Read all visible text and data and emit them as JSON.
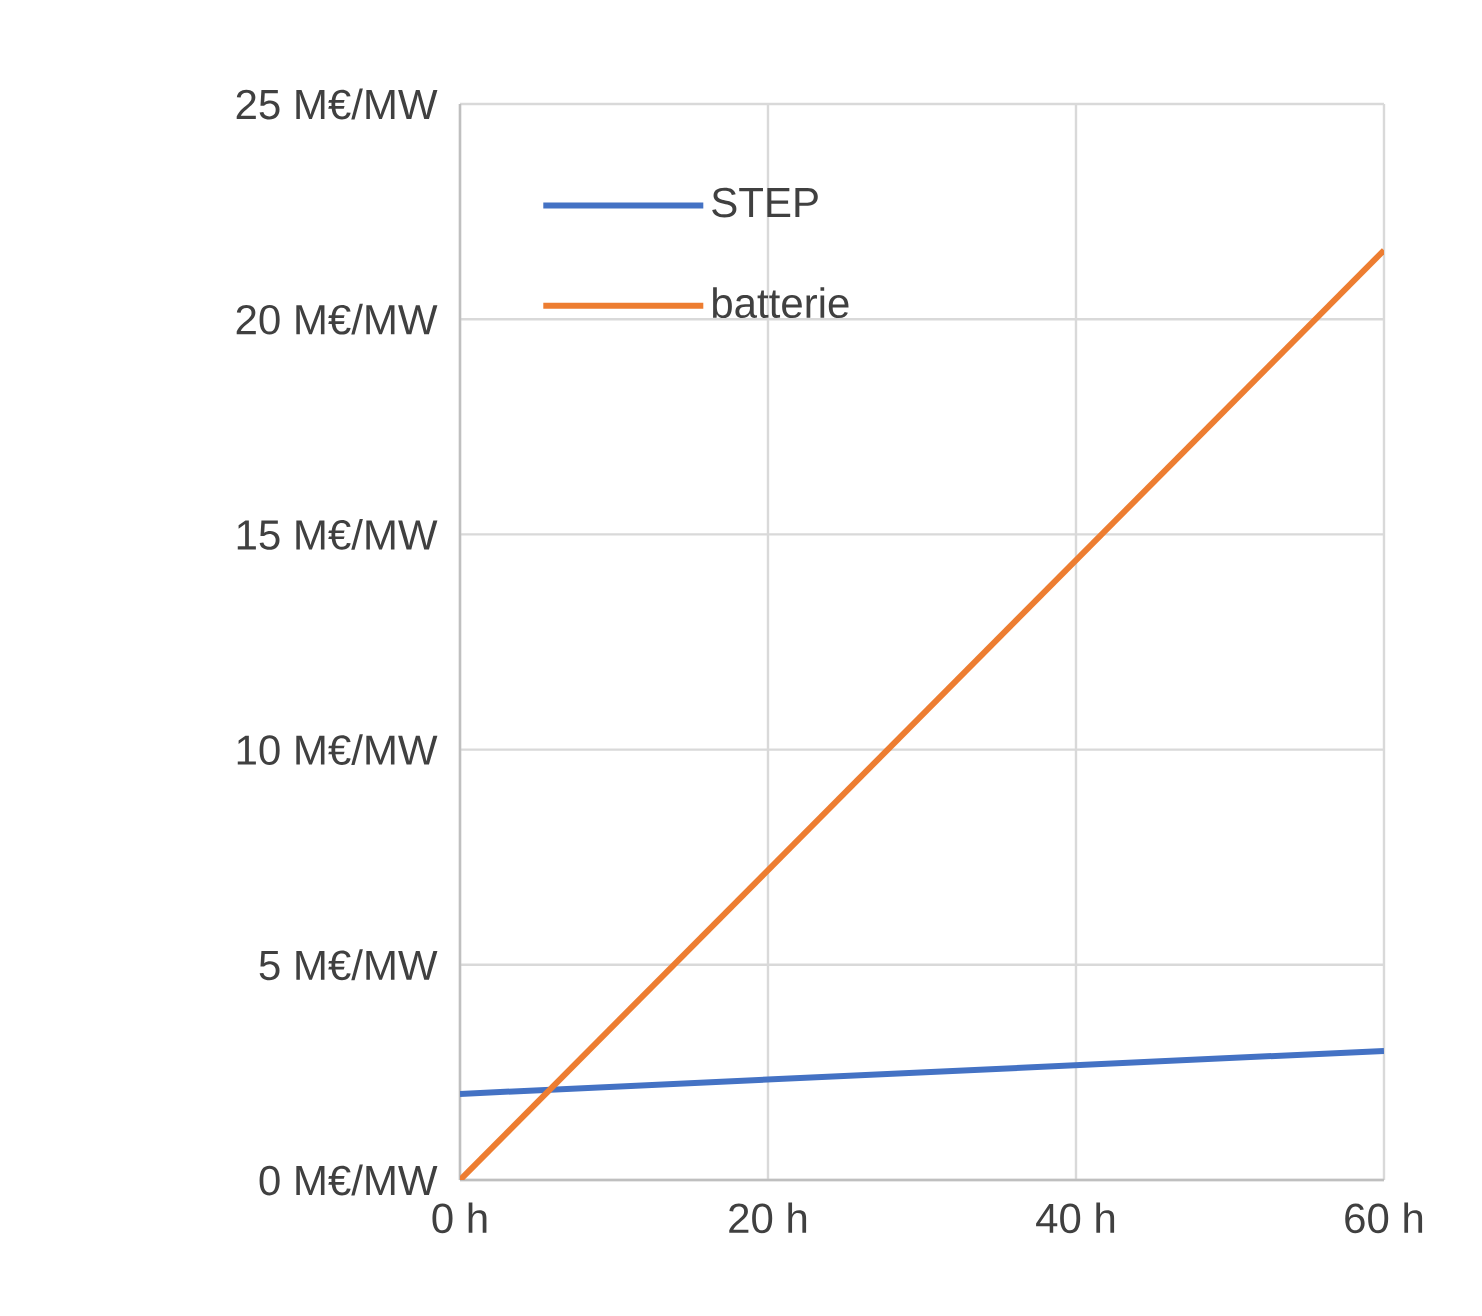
{
  "chart_data": {
    "type": "line",
    "x": [
      0,
      60
    ],
    "series": [
      {
        "name": "STEP",
        "color": "#4472c4",
        "values": [
          2,
          3
        ]
      },
      {
        "name": "batterie",
        "color": "#ed7d31",
        "values": [
          0,
          21.6
        ]
      }
    ],
    "xlim": [
      0,
      60
    ],
    "xticks": [
      {
        "value": 0,
        "label": "0 h"
      },
      {
        "value": 20,
        "label": "20 h"
      },
      {
        "value": 40,
        "label": "40 h"
      },
      {
        "value": 60,
        "label": "60 h"
      }
    ],
    "ylim": [
      0,
      25
    ],
    "yticks": [
      {
        "value": 0,
        "label": "0 M€/MW"
      },
      {
        "value": 5,
        "label": "5 M€/MW"
      },
      {
        "value": 10,
        "label": "10 M€/MW"
      },
      {
        "value": 15,
        "label": "15 M€/MW"
      },
      {
        "value": 20,
        "label": "20 M€/MW"
      },
      {
        "value": 25,
        "label": "25 M€/MW"
      }
    ],
    "grid": true,
    "legend": "top left",
    "marker": "none",
    "line_style": "solid"
  }
}
